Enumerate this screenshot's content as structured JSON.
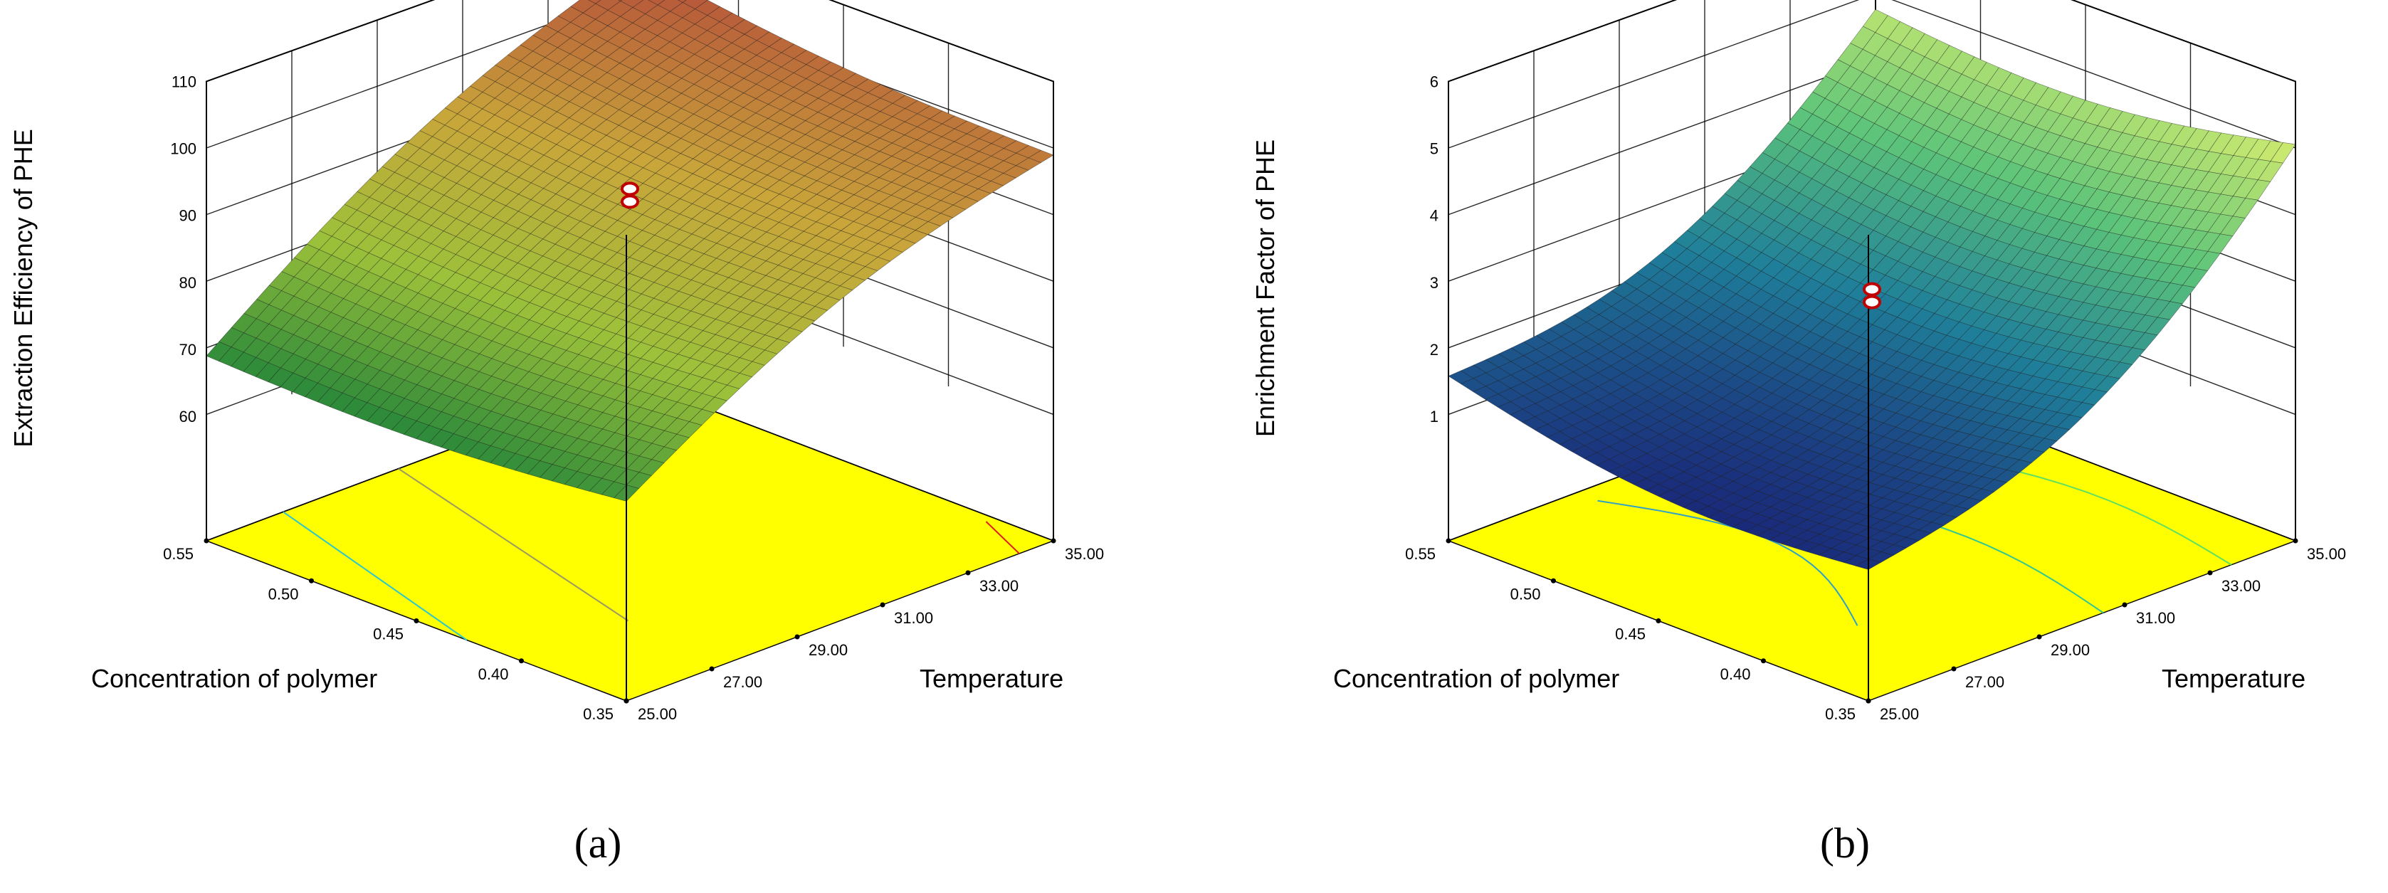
{
  "panels": [
    {
      "panel_label": "(a)",
      "chart_data": {
        "type": "surface3d",
        "zlabel": "Extraction Efficiency of PHE",
        "xlabel": "Concentration of polymer",
        "ylabel": "Temperature",
        "x_ticks": [
          "0.35",
          "0.40",
          "0.45",
          "0.50",
          "0.55"
        ],
        "y_ticks": [
          "25.00",
          "27.00",
          "29.00",
          "31.00",
          "33.00",
          "35.00"
        ],
        "z_ticks": [
          "60",
          "70",
          "80",
          "90",
          "100",
          "110"
        ],
        "xlim": [
          0.35,
          0.55
        ],
        "ylim": [
          25,
          35
        ],
        "zlim": [
          60,
          110
        ],
        "corner_values": {
          "x0.55_y25": 69,
          "x0.55_y35": 105,
          "x0.35_y25": 71,
          "x0.35_y35": 99
        },
        "design_points": [
          {
            "x": 0.45,
            "y": 30,
            "z": 93
          }
        ],
        "colormap": [
          "#2e8b3a",
          "#9cc13a",
          "#c9a63a",
          "#b5503a"
        ],
        "floor_color": "#ffff00",
        "contour_colors": [
          "#30c8c8",
          "#9a9a60",
          "#e02020"
        ]
      }
    },
    {
      "panel_label": "(b)",
      "chart_data": {
        "type": "surface3d",
        "zlabel": "Enrichment Factor of PHE",
        "xlabel": "Concentration of polymer",
        "ylabel": "Temperature",
        "x_ticks": [
          "0.35",
          "0.40",
          "0.45",
          "0.50",
          "0.55"
        ],
        "y_ticks": [
          "25.00",
          "27.00",
          "29.00",
          "31.00",
          "33.00",
          "35.00"
        ],
        "z_ticks": [
          "1",
          "2",
          "3",
          "4",
          "5",
          "6"
        ],
        "xlim": [
          0.35,
          0.55
        ],
        "ylim": [
          25,
          35
        ],
        "zlim": [
          1,
          6
        ],
        "corner_values": {
          "x0.55_y25": 1.6,
          "x0.55_y35": 5.1,
          "x0.35_y25": 1.1,
          "x0.35_y35": 5.4
        },
        "design_points": [
          {
            "x": 0.45,
            "y": 30,
            "z": 2.8
          }
        ],
        "colormap": [
          "#1a2a7a",
          "#1f7f9a",
          "#5cc47a",
          "#c8e870"
        ],
        "floor_color": "#ffff00",
        "contour_colors": [
          "#2fa0c8",
          "#30c890",
          "#60e060"
        ]
      }
    }
  ]
}
